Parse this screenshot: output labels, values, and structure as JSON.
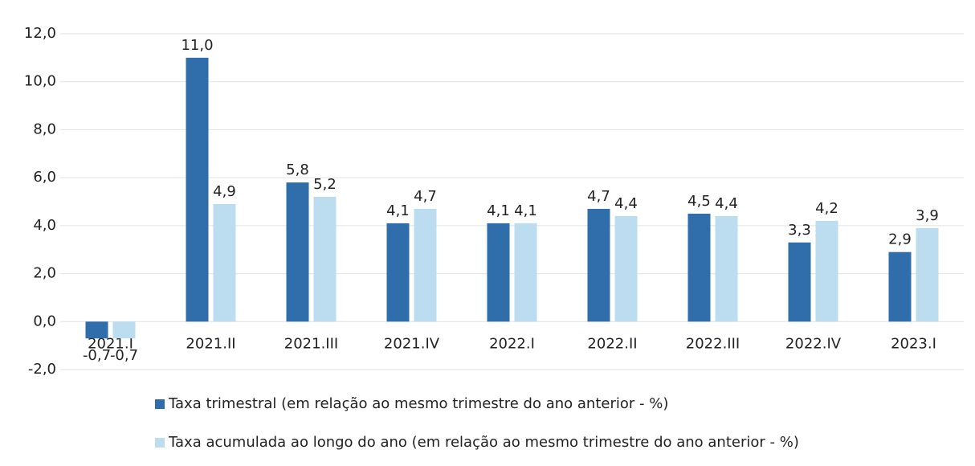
{
  "chart_data": {
    "type": "bar",
    "categories": [
      "2021.I",
      "2021.II",
      "2021.III",
      "2021.IV",
      "2022.I",
      "2022.II",
      "2022.III",
      "2022.IV",
      "2023.I"
    ],
    "series": [
      {
        "name": "Taxa trimestral (em relação ao mesmo trimestre do ano anterior - %)",
        "color": "#2f6dab",
        "values": [
          -0.7,
          11.0,
          5.8,
          4.1,
          4.1,
          4.7,
          4.5,
          3.3,
          2.9
        ],
        "value_labels": [
          "-0,7",
          "11,0",
          "5,8",
          "4,1",
          "4,1",
          "4,7",
          "4,5",
          "3,3",
          "2,9"
        ]
      },
      {
        "name": "Taxa acumulada ao longo do ano (em relação ao mesmo trimestre do ano anterior - %)",
        "color": "#bcdcef",
        "values": [
          -0.7,
          4.9,
          5.2,
          4.7,
          4.1,
          4.4,
          4.4,
          4.2,
          3.9
        ],
        "value_labels": [
          "-0,7",
          "4,9",
          "5,2",
          "4,7",
          "4,1",
          "4,4",
          "4,4",
          "4,2",
          "3,9"
        ]
      }
    ],
    "ylim": [
      -2,
      12
    ],
    "yticks": [
      {
        "value": -2,
        "label": "-2,0"
      },
      {
        "value": 0,
        "label": "0,0"
      },
      {
        "value": 2,
        "label": "2,0"
      },
      {
        "value": 4,
        "label": "4,0"
      },
      {
        "value": 6,
        "label": "6,0"
      },
      {
        "value": 8,
        "label": "8,0"
      },
      {
        "value": 10,
        "label": "10,0"
      },
      {
        "value": 12,
        "label": "12,0"
      }
    ],
    "grid": true,
    "legend": "bottom"
  }
}
